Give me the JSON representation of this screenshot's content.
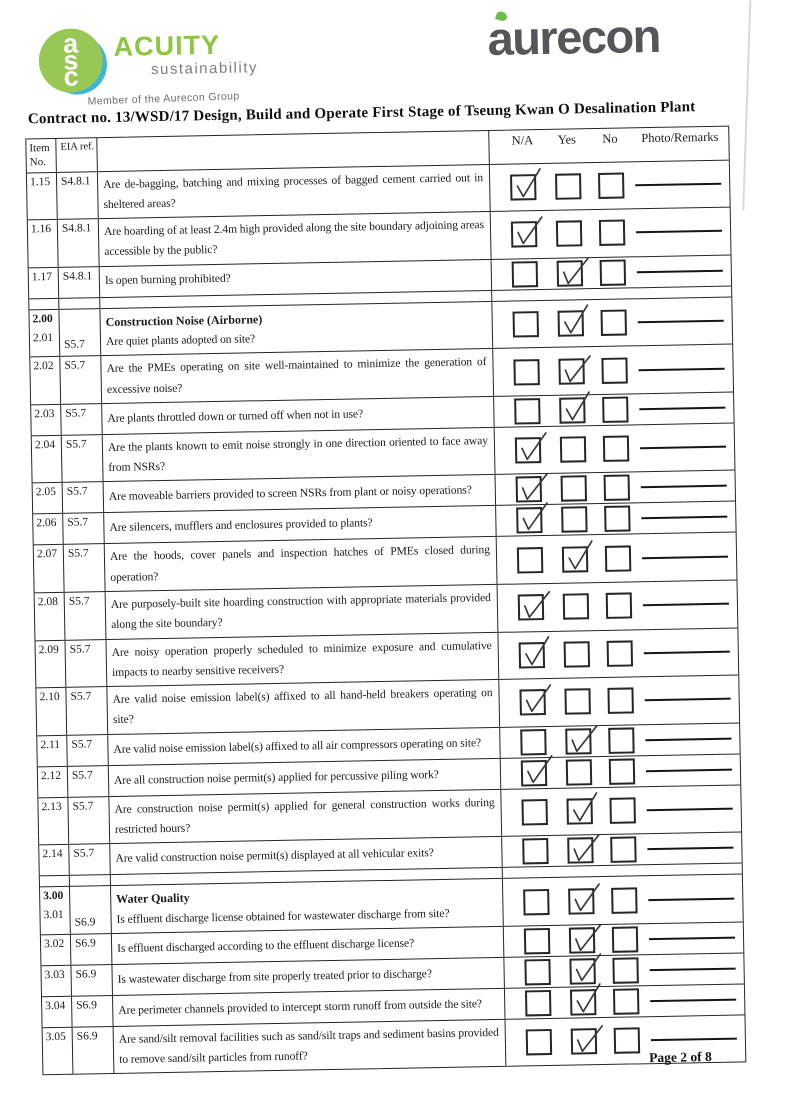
{
  "branding": {
    "acuity": {
      "monogram": [
        "a",
        "s",
        "c"
      ],
      "name": "ACUITY",
      "sub": "sustainability",
      "member": "Member of the Aurecon Group",
      "circle_color": "#99c755",
      "text_color": "#8dc63f"
    },
    "aurecon": {
      "name": "aurecon",
      "text_color": "#55565a",
      "dot_color": "#68bf4a"
    }
  },
  "title": "Contract no.  13/WSD/17 Design, Build and Operate First Stage of Tseung Kwan O Desalination Plant",
  "table": {
    "headers": {
      "item_line1": "Item",
      "item_line2": "No.",
      "eia": "EIA ref.",
      "na": "N/A",
      "yes": "Yes",
      "no": "No",
      "remarks": "Photo/Remarks"
    },
    "rows": [
      {
        "item": "1.15",
        "eia": "S4.8.1",
        "question": "Are de-bagging, batching and mixing processes of bagged cement carried out in sheltered areas?",
        "checked": "na"
      },
      {
        "item": "1.16",
        "eia": "S4.8.1",
        "question": "Are hoarding of at least 2.4m high provided along the site boundary adjoining areas accessible by the public?",
        "checked": "na"
      },
      {
        "item": "1.17",
        "eia": "S4.8.1",
        "question": "Is open burning prohibited?",
        "checked": "yes"
      },
      {
        "item": "2.00",
        "item2": "2.01",
        "eia": "S5.7",
        "section": "Construction Noise (Airborne)",
        "question": "Are quiet plants adopted on site?",
        "checked": "yes"
      },
      {
        "item": "2.02",
        "eia": "S5.7",
        "question": "Are the PMEs operating on site well-maintained to minimize the generation of excessive noise?",
        "checked": "yes"
      },
      {
        "item": "2.03",
        "eia": "S5.7",
        "question": "Are plants throttled down or turned off when not in use?",
        "checked": "yes"
      },
      {
        "item": "2.04",
        "eia": "S5.7",
        "question": "Are the plants known to emit noise strongly in one direction oriented to face away from NSRs?",
        "checked": "na"
      },
      {
        "item": "2.05",
        "eia": "S5.7",
        "question": "Are moveable barriers provided to screen NSRs from plant or noisy operations?",
        "checked": "na"
      },
      {
        "item": "2.06",
        "eia": "S5.7",
        "question": "Are silencers, mufflers and enclosures provided to plants?",
        "checked": "na"
      },
      {
        "item": "2.07",
        "eia": "S5.7",
        "question": "Are the hoods, cover panels and inspection hatches of PMEs closed during operation?",
        "checked": "yes"
      },
      {
        "item": "2.08",
        "eia": "S5.7",
        "question": "Are purposely-built site hoarding construction with appropriate materials provided along the site boundary?",
        "checked": "na"
      },
      {
        "item": "2.09",
        "eia": "S5.7",
        "question": "Are noisy operation properly scheduled to minimize exposure and cumulative impacts to nearby sensitive receivers?",
        "checked": "na"
      },
      {
        "item": "2.10",
        "eia": "S5.7",
        "question": "Are valid noise emission label(s) affixed to all hand-held breakers operating on site?",
        "checked": "na"
      },
      {
        "item": "2.11",
        "eia": "S5.7",
        "question": "Are valid noise emission label(s) affixed to all air compressors operating on site?",
        "checked": "yes"
      },
      {
        "item": "2.12",
        "eia": "S5.7",
        "question": "Are all construction noise permit(s) applied for percussive piling work?",
        "checked": "na"
      },
      {
        "item": "2.13",
        "eia": "S5.7",
        "question": "Are construction noise permit(s) applied for general construction works during restricted hours?",
        "checked": "yes"
      },
      {
        "item": "2.14",
        "eia": "S5.7",
        "question": "Are valid construction noise permit(s) displayed at all vehicular exits?",
        "checked": "yes"
      },
      {
        "item": "3.00",
        "item2": "3.01",
        "eia": "S6.9",
        "section": "Water Quality",
        "question": "Is effluent discharge license obtained for wastewater discharge from site?",
        "checked": "yes"
      },
      {
        "item": "3.02",
        "eia": "S6.9",
        "question": "Is effluent discharged according to the effluent discharge license?",
        "checked": "yes"
      },
      {
        "item": "3.03",
        "eia": "S6.9",
        "question": "Is wastewater discharge from site properly treated prior to discharge?",
        "checked": "yes"
      },
      {
        "item": "3.04",
        "eia": "S6.9",
        "question": "Are perimeter channels provided to intercept storm runoff from outside the site?",
        "checked": "yes"
      },
      {
        "item": "3.05",
        "eia": "S6.9",
        "question": "Are sand/silt removal facilities such as sand/silt traps and sediment basins provided to remove sand/silt particles from runoff?",
        "checked": "yes"
      }
    ]
  },
  "footer": {
    "page": "Page 2 of 8"
  }
}
